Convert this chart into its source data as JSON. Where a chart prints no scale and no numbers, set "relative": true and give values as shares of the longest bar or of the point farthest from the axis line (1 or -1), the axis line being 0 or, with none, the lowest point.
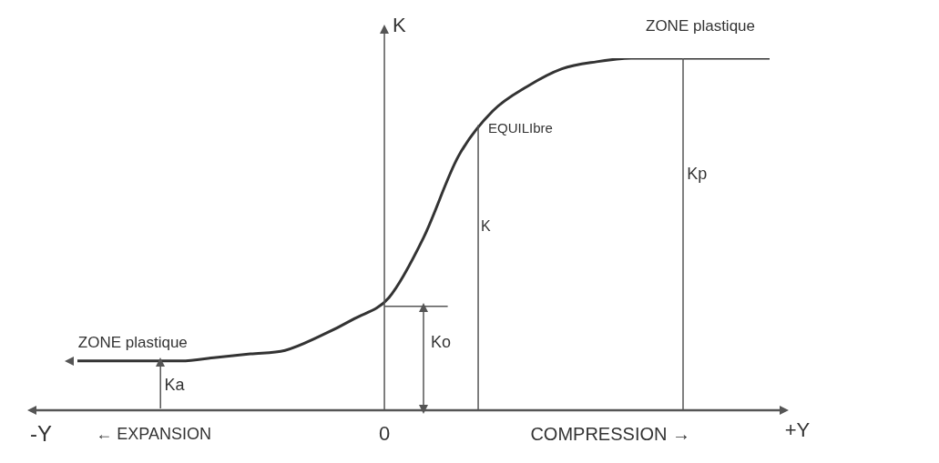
{
  "chart_data": {
    "type": "line",
    "relative": true,
    "ylabel": "K",
    "categories": [
      null,
      null,
      null,
      null,
      null,
      null,
      null,
      null,
      null,
      null,
      null,
      null,
      null,
      null,
      null,
      null,
      null,
      null,
      null,
      null,
      null
    ],
    "series": [
      {
        "color": "#333333",
        "values": [
          0.14,
          0.14,
          0.14,
          0.14,
          0.15,
          0.16,
          0.17,
          0.21,
          0.26,
          0.32,
          0.49,
          0.72,
          0.85,
          0.92,
          0.97,
          0.99,
          1,
          1,
          1,
          1,
          1
        ]
      }
    ],
    "annotations": [
      "ZONE plastique",
      "EQUILIbre",
      "K",
      "Kp",
      "ZONE plastique",
      "Ko",
      "Ka",
      "-Y",
      "← EXPANSION",
      "0",
      "COMPRESSION →",
      "+Y"
    ],
    "ref_lines": [
      {
        "axis": "y",
        "value": 0.295
      }
    ],
    "legend": false,
    "marker": "none",
    "line_style": "solid"
  }
}
